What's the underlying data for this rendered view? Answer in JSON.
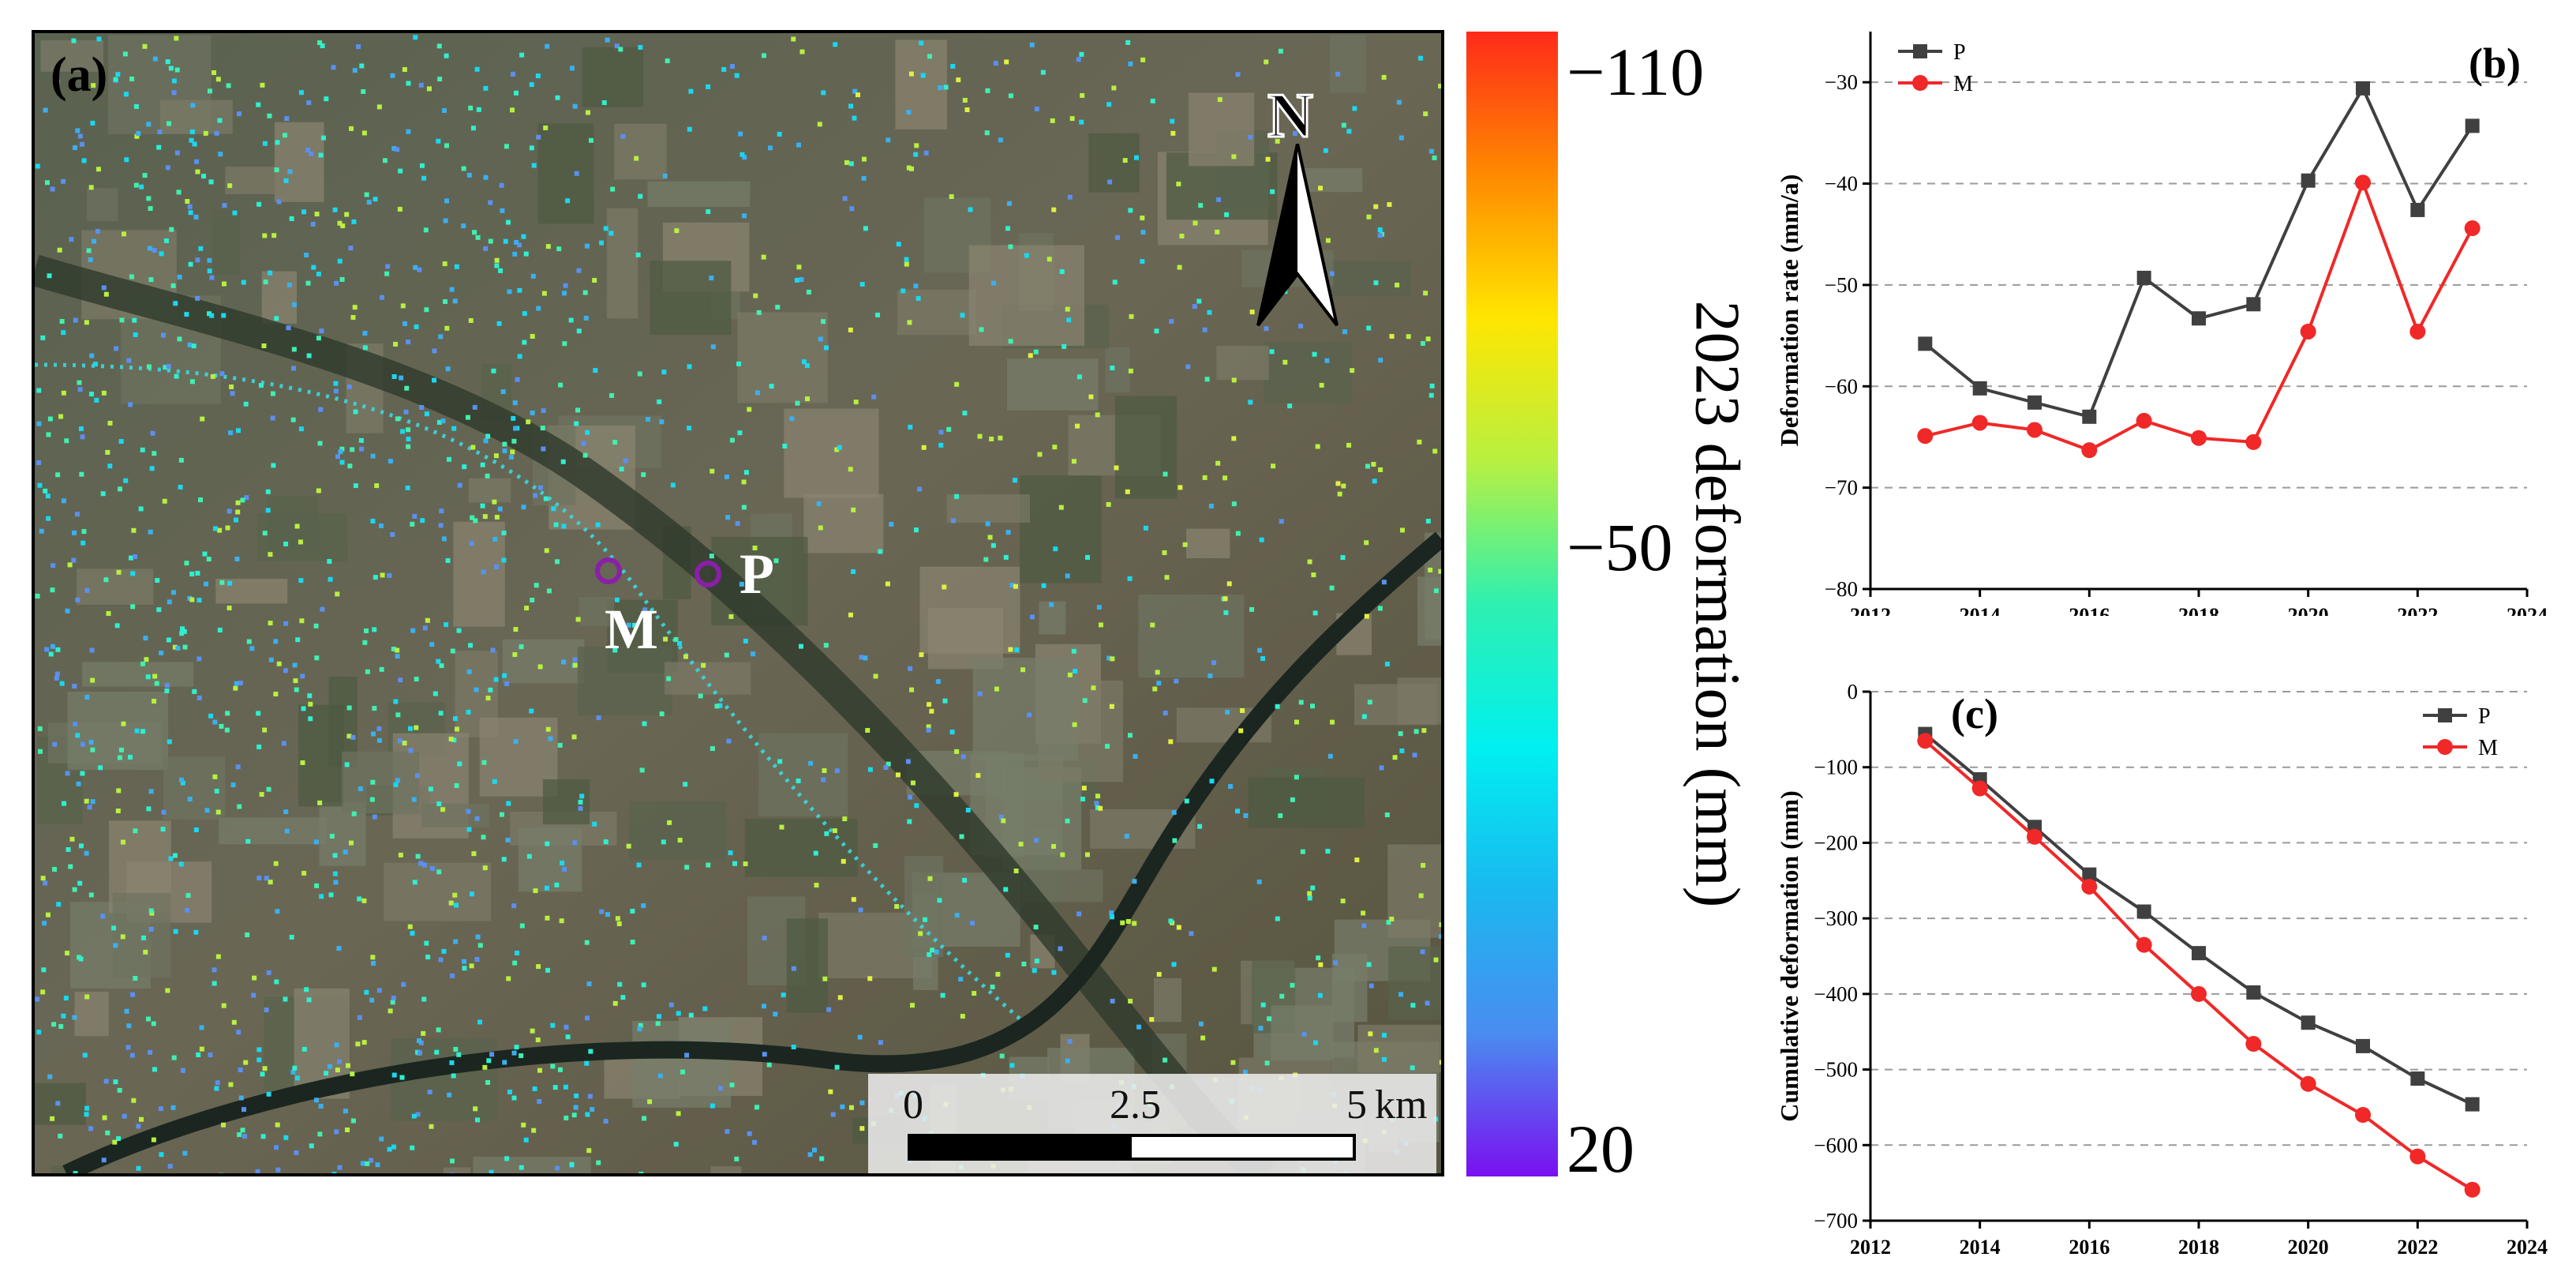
{
  "map": {
    "panel_label": "(a)",
    "north_label": "N",
    "point_p_label": "P",
    "point_m_label": "M",
    "scalebar": {
      "ticks": [
        "0",
        "2.5",
        "5"
      ],
      "unit": "km"
    },
    "marker_color": "#8a1fa8"
  },
  "colorbar": {
    "title": "2023 deformation (mm)",
    "tick_top": "−110",
    "tick_mid": "−50",
    "tick_bottom": "20",
    "colors": [
      "#ff2a1a",
      "#ff8a00",
      "#ffe600",
      "#b8f040",
      "#2ef0b0",
      "#00f0f0",
      "#1ab8f0",
      "#4a8cf0",
      "#7a10f0"
    ]
  },
  "chart_data": [
    {
      "type": "line",
      "panel_label": "(b)",
      "title": "",
      "xlabel": "",
      "ylabel": "Deformation rate (mm/a)",
      "x": [
        2013,
        2014,
        2015,
        2016,
        2017,
        2018,
        2019,
        2020,
        2021,
        2022,
        2023
      ],
      "xlim": [
        2012,
        2024
      ],
      "ylim": [
        -80,
        -25
      ],
      "xticks": [
        "2012",
        "2014",
        "2016",
        "2018",
        "2020",
        "2022",
        "2024"
      ],
      "yticks": [
        "-30",
        "-40",
        "-50",
        "-60",
        "-70",
        "-80"
      ],
      "grid": "horizontal dashed",
      "legend_position": "top-left",
      "series": [
        {
          "name": "P",
          "color": "#404040",
          "marker": "square",
          "values": [
            -55.8,
            -60.2,
            -61.6,
            -63.0,
            -49.3,
            -53.3,
            -51.9,
            -39.7,
            -30.6,
            -42.6,
            -34.3
          ]
        },
        {
          "name": "M",
          "color": "#f02828",
          "marker": "circle",
          "values": [
            -64.9,
            -63.6,
            -64.3,
            -66.3,
            -63.4,
            -65.1,
            -65.5,
            -54.6,
            -39.9,
            -54.6,
            -44.4
          ]
        }
      ]
    },
    {
      "type": "line",
      "panel_label": "(c)",
      "title": "",
      "xlabel": "",
      "ylabel": "Cumulative deformation (mm)",
      "x": [
        2013,
        2014,
        2015,
        2016,
        2017,
        2018,
        2019,
        2020,
        2021,
        2022,
        2023
      ],
      "xlim": [
        2012,
        2024
      ],
      "ylim": [
        -700,
        0
      ],
      "xticks": [
        "2012",
        "2014",
        "2016",
        "2018",
        "2020",
        "2022",
        "2024"
      ],
      "yticks": [
        "0",
        "-100",
        "-200",
        "-300",
        "-400",
        "-500",
        "-600",
        "-700"
      ],
      "grid": "horizontal dashed",
      "legend_position": "top-right",
      "series": [
        {
          "name": "P",
          "color": "#404040",
          "marker": "square",
          "values": [
            -56,
            -116,
            -179,
            -242,
            -291,
            -346,
            -398,
            -438,
            -469,
            -512,
            -546
          ]
        },
        {
          "name": "M",
          "color": "#f02828",
          "marker": "circle",
          "values": [
            -65,
            -128,
            -192,
            -258,
            -335,
            -400,
            -466,
            -519,
            -560,
            -615,
            -659
          ]
        }
      ]
    }
  ]
}
